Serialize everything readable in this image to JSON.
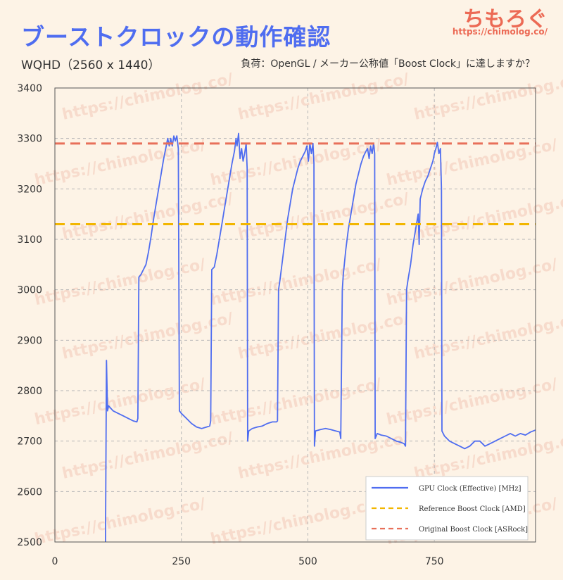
{
  "header": {
    "title": "ブーストクロックの動作確認",
    "subtitle": "WQHD（2560 x 1440）",
    "load_note": "負荷：OpenGL / メーカー公称値「Boost Clock」に達しますか？"
  },
  "brand": {
    "name": "ちもろぐ",
    "url": "https://chimolog.co/"
  },
  "watermark": "https://chimolog.co/",
  "colors": {
    "title": "#4f6df0",
    "background": "#fdf3e6",
    "gpu_clock": "#4f6df0",
    "reference_boost": "#f2b600",
    "original_boost": "#e8705a"
  },
  "chart_data": {
    "type": "line",
    "title": "",
    "xlabel": "",
    "ylabel": "",
    "xlim": [
      0,
      950
    ],
    "ylim": [
      2500,
      3400
    ],
    "x_ticks": [
      0,
      250,
      500,
      750
    ],
    "y_ticks": [
      2500,
      2600,
      2700,
      2800,
      2900,
      3000,
      3100,
      3200,
      3300,
      3400
    ],
    "grid": true,
    "legend_position": "bottom-right",
    "series": [
      {
        "name": "GPU Clock (Effective) [MHz]",
        "style": "solid",
        "points": [
          [
            100,
            2500
          ],
          [
            102,
            2860
          ],
          [
            104,
            2760
          ],
          [
            106,
            2770
          ],
          [
            115,
            2760
          ],
          [
            125,
            2755
          ],
          [
            135,
            2750
          ],
          [
            145,
            2745
          ],
          [
            155,
            2740
          ],
          [
            162,
            2738
          ],
          [
            164,
            2745
          ],
          [
            166,
            3025
          ],
          [
            170,
            3030
          ],
          [
            175,
            3040
          ],
          [
            180,
            3050
          ],
          [
            185,
            3075
          ],
          [
            190,
            3105
          ],
          [
            195,
            3140
          ],
          [
            200,
            3170
          ],
          [
            205,
            3200
          ],
          [
            210,
            3230
          ],
          [
            215,
            3260
          ],
          [
            220,
            3285
          ],
          [
            223,
            3300
          ],
          [
            226,
            3285
          ],
          [
            229,
            3300
          ],
          [
            232,
            3285
          ],
          [
            235,
            3305
          ],
          [
            238,
            3295
          ],
          [
            241,
            3305
          ],
          [
            244,
            3280
          ],
          [
            246,
            2760
          ],
          [
            250,
            2755
          ],
          [
            260,
            2745
          ],
          [
            270,
            2735
          ],
          [
            280,
            2728
          ],
          [
            290,
            2725
          ],
          [
            300,
            2728
          ],
          [
            306,
            2730
          ],
          [
            308,
            2740
          ],
          [
            310,
            3040
          ],
          [
            315,
            3045
          ],
          [
            320,
            3070
          ],
          [
            325,
            3100
          ],
          [
            330,
            3130
          ],
          [
            335,
            3160
          ],
          [
            340,
            3190
          ],
          [
            345,
            3220
          ],
          [
            350,
            3250
          ],
          [
            355,
            3275
          ],
          [
            358,
            3300
          ],
          [
            360,
            3285
          ],
          [
            363,
            3310
          ],
          [
            366,
            3260
          ],
          [
            369,
            3280
          ],
          [
            372,
            3255
          ],
          [
            375,
            3270
          ],
          [
            378,
            3290
          ],
          [
            380,
            3240
          ],
          [
            381,
            2700
          ],
          [
            383,
            2720
          ],
          [
            390,
            2725
          ],
          [
            400,
            2728
          ],
          [
            410,
            2730
          ],
          [
            420,
            2735
          ],
          [
            430,
            2738
          ],
          [
            438,
            2738
          ],
          [
            440,
            2740
          ],
          [
            442,
            3000
          ],
          [
            445,
            3020
          ],
          [
            450,
            3060
          ],
          [
            455,
            3100
          ],
          [
            460,
            3140
          ],
          [
            465,
            3170
          ],
          [
            470,
            3200
          ],
          [
            475,
            3220
          ],
          [
            480,
            3240
          ],
          [
            485,
            3255
          ],
          [
            490,
            3265
          ],
          [
            495,
            3275
          ],
          [
            498,
            3285
          ],
          [
            501,
            3255
          ],
          [
            504,
            3290
          ],
          [
            507,
            3270
          ],
          [
            510,
            3290
          ],
          [
            512,
            3250
          ],
          [
            513,
            2690
          ],
          [
            515,
            2720
          ],
          [
            525,
            2723
          ],
          [
            535,
            2725
          ],
          [
            545,
            2723
          ],
          [
            555,
            2720
          ],
          [
            563,
            2718
          ],
          [
            565,
            2705
          ],
          [
            568,
            3000
          ],
          [
            570,
            3030
          ],
          [
            575,
            3080
          ],
          [
            580,
            3120
          ],
          [
            585,
            3150
          ],
          [
            590,
            3180
          ],
          [
            595,
            3210
          ],
          [
            600,
            3230
          ],
          [
            605,
            3250
          ],
          [
            610,
            3265
          ],
          [
            615,
            3275
          ],
          [
            618,
            3280
          ],
          [
            621,
            3260
          ],
          [
            624,
            3285
          ],
          [
            627,
            3270
          ],
          [
            630,
            3290
          ],
          [
            632,
            3270
          ],
          [
            633,
            2705
          ],
          [
            637,
            2715
          ],
          [
            645,
            2712
          ],
          [
            655,
            2710
          ],
          [
            665,
            2705
          ],
          [
            675,
            2700
          ],
          [
            685,
            2697
          ],
          [
            690,
            2695
          ],
          [
            693,
            2690
          ],
          [
            695,
            3000
          ],
          [
            698,
            3020
          ],
          [
            703,
            3050
          ],
          [
            708,
            3090
          ],
          [
            713,
            3120
          ],
          [
            718,
            3150
          ],
          [
            720,
            3090
          ],
          [
            722,
            3180
          ],
          [
            727,
            3200
          ],
          [
            732,
            3215
          ],
          [
            737,
            3225
          ],
          [
            742,
            3240
          ],
          [
            747,
            3255
          ],
          [
            750,
            3270
          ],
          [
            753,
            3280
          ],
          [
            756,
            3292
          ],
          [
            759,
            3270
          ],
          [
            762,
            3280
          ],
          [
            764,
            3200
          ],
          [
            765,
            2720
          ],
          [
            770,
            2710
          ],
          [
            780,
            2700
          ],
          [
            790,
            2695
          ],
          [
            800,
            2690
          ],
          [
            810,
            2685
          ],
          [
            820,
            2690
          ],
          [
            830,
            2700
          ],
          [
            840,
            2700
          ],
          [
            850,
            2690
          ],
          [
            860,
            2695
          ],
          [
            870,
            2700
          ],
          [
            880,
            2705
          ],
          [
            890,
            2710
          ],
          [
            900,
            2715
          ],
          [
            910,
            2710
          ],
          [
            920,
            2715
          ],
          [
            930,
            2712
          ],
          [
            940,
            2718
          ],
          [
            950,
            2722
          ]
        ]
      },
      {
        "name": "Reference Boost Clock [AMD]",
        "style": "dashed",
        "constant": 3130
      },
      {
        "name": "Original Boost Clock [ASRock]",
        "style": "dashed",
        "constant": 3290
      }
    ]
  }
}
